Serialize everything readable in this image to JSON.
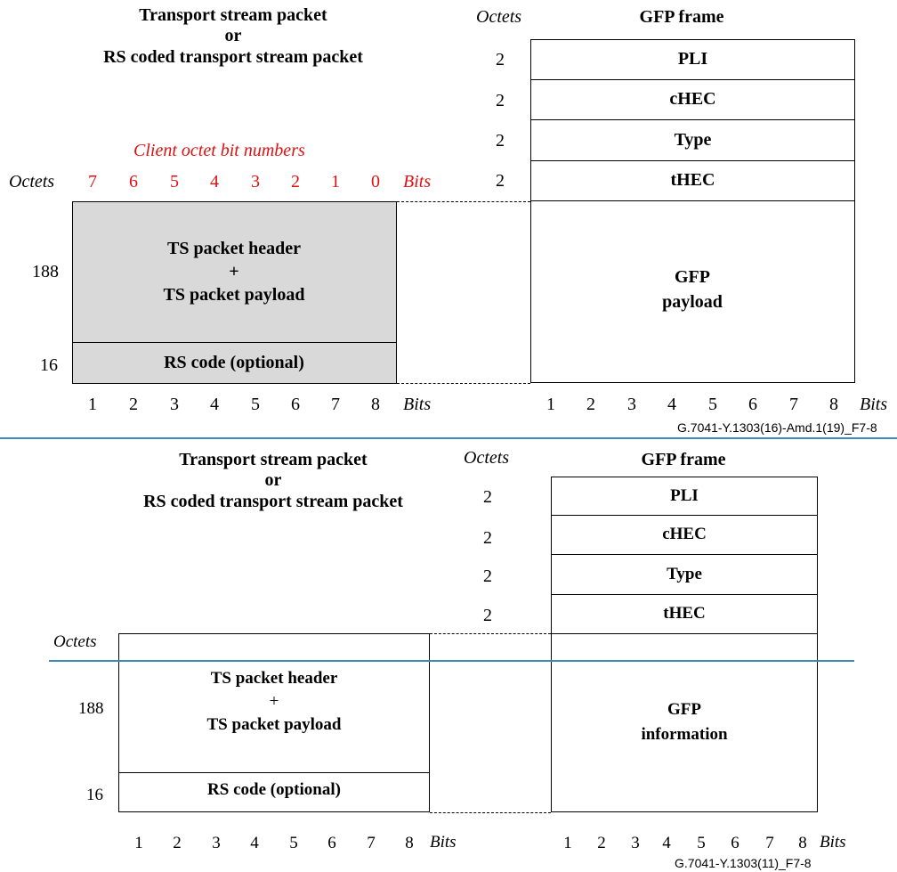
{
  "top": {
    "ts_title_1": "Transport stream packet",
    "ts_title_or": "or",
    "ts_title_2": "RS coded transport stream packet",
    "octets_header": "Octets",
    "gfp_title": "GFP frame",
    "client_bits_label": "Client octet bit numbers",
    "left_octets_label": "Octets",
    "client_bit_numbers": [
      "7",
      "6",
      "5",
      "4",
      "3",
      "2",
      "1",
      "0"
    ],
    "bits_label": "Bits",
    "gfp_fields": [
      {
        "octets": "2",
        "name": "PLI"
      },
      {
        "octets": "2",
        "name": "cHEC"
      },
      {
        "octets": "2",
        "name": "Type"
      },
      {
        "octets": "2",
        "name": "tHEC"
      }
    ],
    "payload_octets": "188",
    "payload_line1": "TS packet header",
    "payload_plus": "+",
    "payload_line2": "TS packet payload",
    "rs_octets": "16",
    "rs_label": "RS code (optional)",
    "gfp_payload_1": "GFP",
    "gfp_payload_2": "payload",
    "bottom_bits": [
      "1",
      "2",
      "3",
      "4",
      "5",
      "6",
      "7",
      "8"
    ],
    "bottom_bits_label": "Bits",
    "gfp_bits": [
      "1",
      "2",
      "3",
      "4",
      "5",
      "6",
      "7",
      "8"
    ],
    "gfp_bits_label": "Bits",
    "figure_tag": "G.7041-Y.1303(16)-Amd.1(19)_F7-8"
  },
  "bottom": {
    "ts_title_1": "Transport stream packet",
    "ts_title_or": "or",
    "ts_title_2": "RS coded transport stream packet",
    "octets_header": "Octets",
    "gfp_title": "GFP frame",
    "left_octets_label": "Octets",
    "gfp_fields": [
      {
        "octets": "2",
        "name": "PLI"
      },
      {
        "octets": "2",
        "name": "cHEC"
      },
      {
        "octets": "2",
        "name": "Type"
      },
      {
        "octets": "2",
        "name": "tHEC"
      }
    ],
    "payload_octets": "188",
    "payload_line1": "TS packet header",
    "payload_plus": "+",
    "payload_line2": "TS packet payload",
    "rs_octets": "16",
    "rs_label": "RS code (optional)",
    "gfp_info_1": "GFP",
    "gfp_info_2": "information",
    "bottom_bits": [
      "1",
      "2",
      "3",
      "4",
      "5",
      "6",
      "7",
      "8"
    ],
    "bottom_bits_label": "Bits",
    "gfp_bits": [
      "1",
      "2",
      "3",
      "4",
      "5",
      "6",
      "7",
      "8"
    ],
    "gfp_bits_label": "Bits",
    "figure_tag": "G.7041-Y.1303(11)_F7-8"
  }
}
